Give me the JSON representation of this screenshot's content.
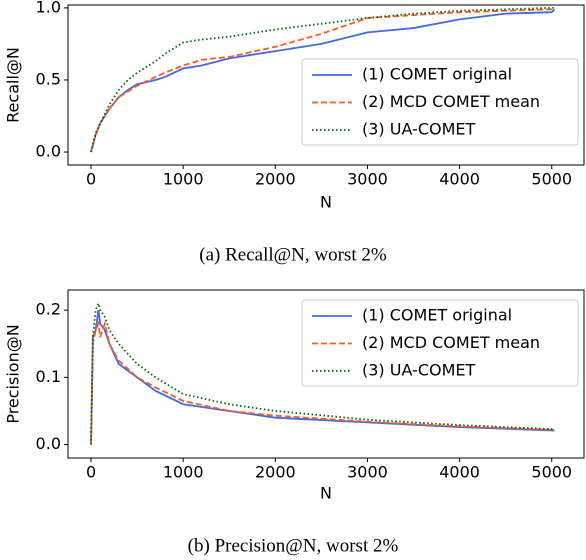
{
  "chart_data": [
    {
      "type": "line",
      "caption": "(a)  Recall@N, worst 2%",
      "xlabel": "N",
      "ylabel": "Recall@N",
      "x": [
        0,
        50,
        100,
        200,
        300,
        400,
        500,
        700,
        800,
        1000,
        1200,
        1500,
        2000,
        2500,
        3000,
        3500,
        4000,
        4500,
        5000,
        5030
      ],
      "series": [
        {
          "name": "(1) COMET original",
          "color": "#4169e1",
          "style": "solid",
          "values": [
            0,
            0.12,
            0.2,
            0.3,
            0.38,
            0.43,
            0.47,
            0.5,
            0.52,
            0.58,
            0.6,
            0.65,
            0.7,
            0.75,
            0.83,
            0.86,
            0.92,
            0.96,
            0.97,
            0.99
          ]
        },
        {
          "name": "(2) MCD COMET mean",
          "color": "#ff5722",
          "style": "dashed",
          "values": [
            0,
            0.12,
            0.2,
            0.3,
            0.38,
            0.42,
            0.46,
            0.52,
            0.55,
            0.6,
            0.64,
            0.66,
            0.73,
            0.82,
            0.93,
            0.95,
            0.97,
            0.98,
            0.99,
            1.0
          ]
        },
        {
          "name": "(3) UA-COMET",
          "color": "#006400",
          "style": "dotted",
          "values": [
            0,
            0.13,
            0.2,
            0.33,
            0.43,
            0.5,
            0.55,
            0.63,
            0.68,
            0.76,
            0.78,
            0.8,
            0.85,
            0.89,
            0.93,
            0.96,
            0.98,
            0.99,
            1.0,
            1.0
          ]
        }
      ],
      "xlim": [
        -250,
        5350
      ],
      "xticks": [
        0,
        1000,
        2000,
        3000,
        4000,
        5000
      ],
      "ylim": [
        -0.09,
        1.02
      ],
      "yticks": [
        {
          "value": 0,
          "label": "0.0"
        },
        0.5,
        {
          "value": 1,
          "label": "1.0"
        }
      ],
      "legend": "lower right"
    },
    {
      "type": "line",
      "caption": "(b)  Precision@N, worst 2%",
      "xlabel": "N",
      "ylabel": "Precision@N",
      "x": [
        0,
        20,
        50,
        80,
        100,
        150,
        200,
        300,
        500,
        700,
        1000,
        1500,
        2000,
        3000,
        4000,
        5000,
        5030
      ],
      "series": [
        {
          "name": "(1) COMET original",
          "color": "#4169e1",
          "style": "solid",
          "values": [
            0,
            0.16,
            0.17,
            0.2,
            0.18,
            0.17,
            0.15,
            0.12,
            0.1,
            0.08,
            0.06,
            0.05,
            0.04,
            0.033,
            0.026,
            0.021,
            0.021
          ]
        },
        {
          "name": "(2) MCD COMET mean",
          "color": "#ff5722",
          "style": "dashed",
          "values": [
            0,
            0.15,
            0.17,
            0.18,
            0.16,
            0.18,
            0.15,
            0.125,
            0.1,
            0.085,
            0.065,
            0.05,
            0.043,
            0.034,
            0.027,
            0.022,
            0.021
          ]
        },
        {
          "name": "(3) UA-COMET",
          "color": "#006400",
          "style": "dotted",
          "values": [
            0,
            0.16,
            0.2,
            0.21,
            0.2,
            0.19,
            0.17,
            0.15,
            0.12,
            0.1,
            0.075,
            0.06,
            0.05,
            0.037,
            0.029,
            0.023,
            0.022
          ]
        }
      ],
      "xlim": [
        -250,
        5350
      ],
      "xticks": [
        0,
        1000,
        2000,
        3000,
        4000,
        5000
      ],
      "ylim": [
        -0.02,
        0.23
      ],
      "yticks": [
        {
          "value": 0,
          "label": "0.0"
        },
        0.1,
        0.2
      ],
      "legend": "upper right"
    }
  ]
}
